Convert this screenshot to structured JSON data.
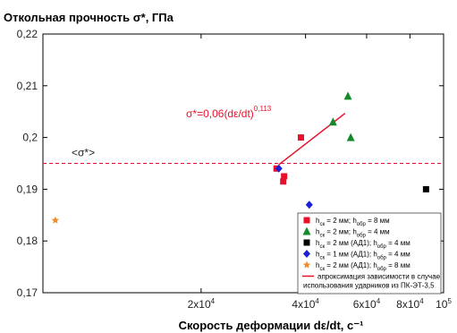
{
  "chart_data": {
    "type": "scatter",
    "title": "Откольная прочность σ*, ГПа",
    "xlabel": "Скорость деформации dε/dt, с⁻¹",
    "ylabel": "",
    "x_scale": "log",
    "xlim": [
      7000,
      100000
    ],
    "ylim": [
      0.17,
      0.22
    ],
    "y_ticks": [
      "0,17",
      "0,18",
      "0,19",
      "0,2",
      "0,21",
      "0,22"
    ],
    "y_tick_values": [
      0.17,
      0.18,
      0.19,
      0.2,
      0.21,
      0.22
    ],
    "x_ticks": [
      {
        "value": 20000,
        "base": "2x10",
        "exp": "4"
      },
      {
        "value": 40000,
        "base": "4x10",
        "exp": "4"
      },
      {
        "value": 60000,
        "base": "6x10",
        "exp": "4"
      },
      {
        "value": 80000,
        "base": "8x10",
        "exp": "4"
      },
      {
        "value": 100000,
        "base": "10",
        "exp": "5"
      }
    ],
    "series": [
      {
        "name": "h_ск = 2 мм; h_обр = 8 мм",
        "marker": "square",
        "color": "#e8102a",
        "points": [
          [
            33000,
            0.194
          ],
          [
            34500,
            0.1915
          ],
          [
            34700,
            0.1925
          ],
          [
            38800,
            0.2
          ]
        ]
      },
      {
        "name": "h_ск = 2 мм; h_обр = 4 мм",
        "marker": "triangle",
        "color": "#138a2c",
        "points": [
          [
            48000,
            0.203
          ],
          [
            53000,
            0.208
          ],
          [
            54000,
            0.2
          ]
        ]
      },
      {
        "name": "h_ск = 2 мм (АД1); h_обр = 4 мм",
        "marker": "square",
        "color": "#000000",
        "points": [
          [
            89000,
            0.19
          ]
        ]
      },
      {
        "name": "h_ск = 1 мм (АД1); h_обр = 4 мм",
        "marker": "diamond",
        "color": "#1b1fd6",
        "points": [
          [
            33500,
            0.194
          ],
          [
            41000,
            0.187
          ]
        ]
      },
      {
        "name": "h_ск = 2 мм (АД1); h_обр = 8 мм",
        "marker": "star",
        "color": "#f08a2a",
        "points": [
          [
            7600,
            0.184
          ]
        ]
      }
    ],
    "fit_line": {
      "name": "апроксимация зависимости в случае использования ударников из ПК-ЭТ-3,5",
      "color": "#e8102a",
      "x_range": [
        33500,
        52000
      ],
      "equation_main": "σ*=0,06(dε/dt)",
      "equation_sup": "0,113"
    },
    "reference_line": {
      "y": 0.195,
      "label": "<σ*>",
      "color": "#e8102a",
      "style": "dashed"
    }
  }
}
